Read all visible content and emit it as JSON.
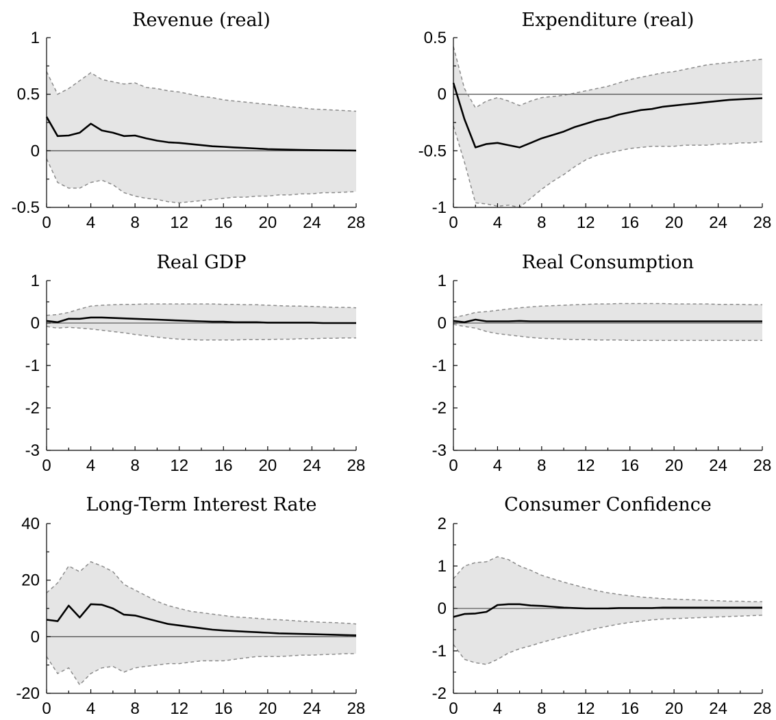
{
  "chart_data": [
    {
      "type": "line",
      "title": "Revenue (real)",
      "xlim": [
        0,
        28
      ],
      "ylim": [
        -0.5,
        1
      ],
      "xticks": [
        0,
        4,
        8,
        12,
        16,
        20,
        24,
        28
      ],
      "yticks": [
        -0.5,
        0,
        0.5,
        1
      ],
      "ytick_labels": [
        "-0.5",
        "0",
        "0.5",
        "1"
      ],
      "zero_line": true,
      "x": [
        0,
        1,
        2,
        3,
        4,
        5,
        6,
        7,
        8,
        9,
        10,
        11,
        12,
        13,
        14,
        15,
        16,
        17,
        18,
        19,
        20,
        21,
        22,
        23,
        24,
        25,
        26,
        27,
        28
      ],
      "series": [
        {
          "role": "upper",
          "values": [
            0.7,
            0.5,
            0.55,
            0.62,
            0.69,
            0.63,
            0.61,
            0.59,
            0.6,
            0.56,
            0.55,
            0.53,
            0.52,
            0.5,
            0.48,
            0.47,
            0.45,
            0.44,
            0.43,
            0.42,
            0.41,
            0.4,
            0.39,
            0.38,
            0.37,
            0.365,
            0.36,
            0.355,
            0.35
          ]
        },
        {
          "role": "estimate",
          "values": [
            0.3,
            0.13,
            0.135,
            0.16,
            0.24,
            0.18,
            0.16,
            0.13,
            0.135,
            0.11,
            0.09,
            0.075,
            0.07,
            0.06,
            0.05,
            0.04,
            0.035,
            0.03,
            0.025,
            0.02,
            0.015,
            0.012,
            0.01,
            0.008,
            0.006,
            0.005,
            0.004,
            0.003,
            0.002
          ]
        },
        {
          "role": "lower",
          "values": [
            -0.07,
            -0.28,
            -0.33,
            -0.33,
            -0.28,
            -0.26,
            -0.3,
            -0.37,
            -0.4,
            -0.42,
            -0.43,
            -0.45,
            -0.46,
            -0.45,
            -0.44,
            -0.43,
            -0.42,
            -0.41,
            -0.41,
            -0.4,
            -0.4,
            -0.39,
            -0.39,
            -0.38,
            -0.38,
            -0.37,
            -0.37,
            -0.365,
            -0.36
          ]
        }
      ]
    },
    {
      "type": "line",
      "title": "Expenditure (real)",
      "xlim": [
        0,
        28
      ],
      "ylim": [
        -1,
        0.5
      ],
      "xticks": [
        0,
        4,
        8,
        12,
        16,
        20,
        24,
        28
      ],
      "yticks": [
        -1,
        -0.5,
        0,
        0.5
      ],
      "ytick_labels": [
        "-1",
        "-0.5",
        "0",
        "0.5"
      ],
      "zero_line": true,
      "x": [
        0,
        1,
        2,
        3,
        4,
        5,
        6,
        7,
        8,
        9,
        10,
        11,
        12,
        13,
        14,
        15,
        16,
        17,
        18,
        19,
        20,
        21,
        22,
        23,
        24,
        25,
        26,
        27,
        28
      ],
      "series": [
        {
          "role": "upper",
          "values": [
            0.42,
            0.05,
            -0.12,
            -0.06,
            -0.03,
            -0.06,
            -0.1,
            -0.06,
            -0.03,
            -0.02,
            -0.01,
            0.01,
            0.03,
            0.05,
            0.07,
            0.1,
            0.13,
            0.15,
            0.17,
            0.19,
            0.2,
            0.22,
            0.24,
            0.26,
            0.27,
            0.28,
            0.29,
            0.3,
            0.31
          ]
        },
        {
          "role": "estimate",
          "values": [
            0.1,
            -0.22,
            -0.47,
            -0.44,
            -0.43,
            -0.45,
            -0.47,
            -0.43,
            -0.39,
            -0.36,
            -0.33,
            -0.29,
            -0.26,
            -0.23,
            -0.21,
            -0.18,
            -0.16,
            -0.14,
            -0.13,
            -0.11,
            -0.1,
            -0.09,
            -0.08,
            -0.07,
            -0.06,
            -0.05,
            -0.045,
            -0.04,
            -0.035
          ]
        },
        {
          "role": "lower",
          "values": [
            -0.28,
            -0.6,
            -0.96,
            -0.97,
            -0.99,
            -0.98,
            -1.0,
            -0.92,
            -0.84,
            -0.77,
            -0.71,
            -0.64,
            -0.58,
            -0.54,
            -0.52,
            -0.5,
            -0.48,
            -0.47,
            -0.46,
            -0.46,
            -0.46,
            -0.45,
            -0.45,
            -0.45,
            -0.44,
            -0.44,
            -0.43,
            -0.43,
            -0.42
          ]
        }
      ]
    },
    {
      "type": "line",
      "title": "Real GDP",
      "xlim": [
        0,
        28
      ],
      "ylim": [
        -3,
        1
      ],
      "xticks": [
        0,
        4,
        8,
        12,
        16,
        20,
        24,
        28
      ],
      "yticks": [
        -3,
        -2,
        -1,
        0,
        1
      ],
      "ytick_labels": [
        "-3",
        "-2",
        "-1",
        "0",
        "1"
      ],
      "zero_line": true,
      "x": [
        0,
        1,
        2,
        3,
        4,
        5,
        6,
        7,
        8,
        9,
        10,
        11,
        12,
        13,
        14,
        15,
        16,
        17,
        18,
        19,
        20,
        21,
        22,
        23,
        24,
        25,
        26,
        27,
        28
      ],
      "series": [
        {
          "role": "upper",
          "values": [
            0.18,
            0.2,
            0.25,
            0.33,
            0.4,
            0.42,
            0.43,
            0.44,
            0.44,
            0.45,
            0.45,
            0.45,
            0.45,
            0.45,
            0.45,
            0.45,
            0.44,
            0.44,
            0.43,
            0.43,
            0.42,
            0.41,
            0.4,
            0.4,
            0.39,
            0.38,
            0.37,
            0.37,
            0.36
          ]
        },
        {
          "role": "estimate",
          "values": [
            0.05,
            0.02,
            0.1,
            0.1,
            0.13,
            0.13,
            0.12,
            0.11,
            0.1,
            0.09,
            0.08,
            0.07,
            0.06,
            0.05,
            0.04,
            0.03,
            0.03,
            0.02,
            0.02,
            0.02,
            0.01,
            0.01,
            0.01,
            0.01,
            0.01,
            0.0,
            0.0,
            0.0,
            0.0
          ]
        },
        {
          "role": "lower",
          "values": [
            -0.08,
            -0.12,
            -0.1,
            -0.12,
            -0.14,
            -0.17,
            -0.2,
            -0.23,
            -0.27,
            -0.3,
            -0.33,
            -0.36,
            -0.38,
            -0.39,
            -0.4,
            -0.4,
            -0.4,
            -0.4,
            -0.39,
            -0.39,
            -0.39,
            -0.38,
            -0.38,
            -0.37,
            -0.37,
            -0.36,
            -0.36,
            -0.35,
            -0.35
          ]
        }
      ]
    },
    {
      "type": "line",
      "title": "Real Consumption",
      "xlim": [
        0,
        28
      ],
      "ylim": [
        -3,
        1
      ],
      "xticks": [
        0,
        4,
        8,
        12,
        16,
        20,
        24,
        28
      ],
      "yticks": [
        -3,
        -2,
        -1,
        0,
        1
      ],
      "ytick_labels": [
        "-3",
        "-2",
        "-1",
        "0",
        "1"
      ],
      "zero_line": true,
      "x": [
        0,
        1,
        2,
        3,
        4,
        5,
        6,
        7,
        8,
        9,
        10,
        11,
        12,
        13,
        14,
        15,
        16,
        17,
        18,
        19,
        20,
        21,
        22,
        23,
        24,
        25,
        26,
        27,
        28
      ],
      "series": [
        {
          "role": "upper",
          "values": [
            0.13,
            0.18,
            0.25,
            0.27,
            0.3,
            0.33,
            0.36,
            0.38,
            0.4,
            0.41,
            0.42,
            0.43,
            0.44,
            0.45,
            0.45,
            0.46,
            0.46,
            0.46,
            0.46,
            0.46,
            0.45,
            0.45,
            0.45,
            0.45,
            0.44,
            0.44,
            0.44,
            0.43,
            0.43
          ]
        },
        {
          "role": "estimate",
          "values": [
            0.05,
            0.02,
            0.08,
            0.04,
            0.04,
            0.04,
            0.05,
            0.04,
            0.04,
            0.04,
            0.04,
            0.04,
            0.04,
            0.04,
            0.04,
            0.04,
            0.04,
            0.04,
            0.04,
            0.04,
            0.04,
            0.04,
            0.04,
            0.04,
            0.04,
            0.04,
            0.04,
            0.04,
            0.04
          ]
        },
        {
          "role": "lower",
          "values": [
            -0.03,
            -0.08,
            -0.12,
            -0.2,
            -0.25,
            -0.28,
            -0.31,
            -0.34,
            -0.36,
            -0.37,
            -0.38,
            -0.39,
            -0.39,
            -0.4,
            -0.4,
            -0.4,
            -0.41,
            -0.41,
            -0.41,
            -0.41,
            -0.41,
            -0.41,
            -0.41,
            -0.41,
            -0.41,
            -0.41,
            -0.41,
            -0.41,
            -0.41
          ]
        }
      ]
    },
    {
      "type": "line",
      "title": "Long-Term Interest Rate",
      "xlim": [
        0,
        28
      ],
      "ylim": [
        -20,
        40
      ],
      "xticks": [
        0,
        4,
        8,
        12,
        16,
        20,
        24,
        28
      ],
      "yticks": [
        -20,
        0,
        20,
        40
      ],
      "ytick_labels": [
        "-20",
        "0",
        "20",
        "40"
      ],
      "zero_line": true,
      "x": [
        0,
        1,
        2,
        3,
        4,
        5,
        6,
        7,
        8,
        9,
        10,
        11,
        12,
        13,
        14,
        15,
        16,
        17,
        18,
        19,
        20,
        21,
        22,
        23,
        24,
        25,
        26,
        27,
        28
      ],
      "series": [
        {
          "role": "upper",
          "values": [
            15.5,
            19,
            25,
            23,
            26.5,
            25,
            23,
            18.5,
            16.5,
            14.5,
            12.5,
            11,
            10,
            9,
            8.5,
            8,
            7.5,
            7,
            6.8,
            6.5,
            6.2,
            6,
            5.8,
            5.5,
            5.3,
            5.1,
            5,
            4.8,
            4.5
          ]
        },
        {
          "role": "estimate",
          "values": [
            6,
            5.5,
            11,
            6.8,
            11.5,
            11.3,
            10,
            7.8,
            7.5,
            6.5,
            5.5,
            4.5,
            4,
            3.5,
            3,
            2.5,
            2.2,
            2,
            1.8,
            1.6,
            1.4,
            1.2,
            1.1,
            1,
            0.9,
            0.8,
            0.7,
            0.6,
            0.5
          ]
        },
        {
          "role": "lower",
          "values": [
            -7,
            -13,
            -11,
            -17,
            -13,
            -11,
            -10.5,
            -12.5,
            -11,
            -10.5,
            -10,
            -9.5,
            -9.5,
            -9,
            -8.5,
            -8.5,
            -8.5,
            -8,
            -7.5,
            -7,
            -7,
            -7,
            -6.8,
            -6.5,
            -6.5,
            -6.3,
            -6.2,
            -6,
            -6
          ]
        }
      ]
    },
    {
      "type": "line",
      "title": "Consumer Confidence",
      "xlim": [
        0,
        28
      ],
      "ylim": [
        -2,
        2
      ],
      "xticks": [
        0,
        4,
        8,
        12,
        16,
        20,
        24,
        28
      ],
      "yticks": [
        -2,
        -1,
        0,
        1,
        2
      ],
      "ytick_labels": [
        "-2",
        "-1",
        "0",
        "1",
        "2"
      ],
      "zero_line": true,
      "x": [
        0,
        1,
        2,
        3,
        4,
        5,
        6,
        7,
        8,
        9,
        10,
        11,
        12,
        13,
        14,
        15,
        16,
        17,
        18,
        19,
        20,
        21,
        22,
        23,
        24,
        25,
        26,
        27,
        28
      ],
      "series": [
        {
          "role": "upper",
          "values": [
            0.7,
            1.0,
            1.08,
            1.1,
            1.22,
            1.15,
            1.0,
            0.9,
            0.78,
            0.7,
            0.62,
            0.55,
            0.48,
            0.42,
            0.37,
            0.33,
            0.3,
            0.27,
            0.25,
            0.23,
            0.22,
            0.21,
            0.2,
            0.19,
            0.18,
            0.17,
            0.17,
            0.16,
            0.16
          ]
        },
        {
          "role": "estimate",
          "values": [
            -0.2,
            -0.13,
            -0.12,
            -0.08,
            0.08,
            0.1,
            0.1,
            0.07,
            0.06,
            0.04,
            0.02,
            0.01,
            0.0,
            0.0,
            0.0,
            0.01,
            0.01,
            0.01,
            0.01,
            0.02,
            0.02,
            0.02,
            0.02,
            0.02,
            0.02,
            0.02,
            0.02,
            0.02,
            0.02
          ]
        },
        {
          "role": "lower",
          "values": [
            -0.85,
            -1.2,
            -1.28,
            -1.32,
            -1.2,
            -1.05,
            -0.95,
            -0.88,
            -0.8,
            -0.73,
            -0.66,
            -0.6,
            -0.53,
            -0.47,
            -0.42,
            -0.37,
            -0.33,
            -0.3,
            -0.27,
            -0.25,
            -0.24,
            -0.23,
            -0.22,
            -0.21,
            -0.2,
            -0.19,
            -0.18,
            -0.17,
            -0.16
          ]
        }
      ]
    }
  ]
}
